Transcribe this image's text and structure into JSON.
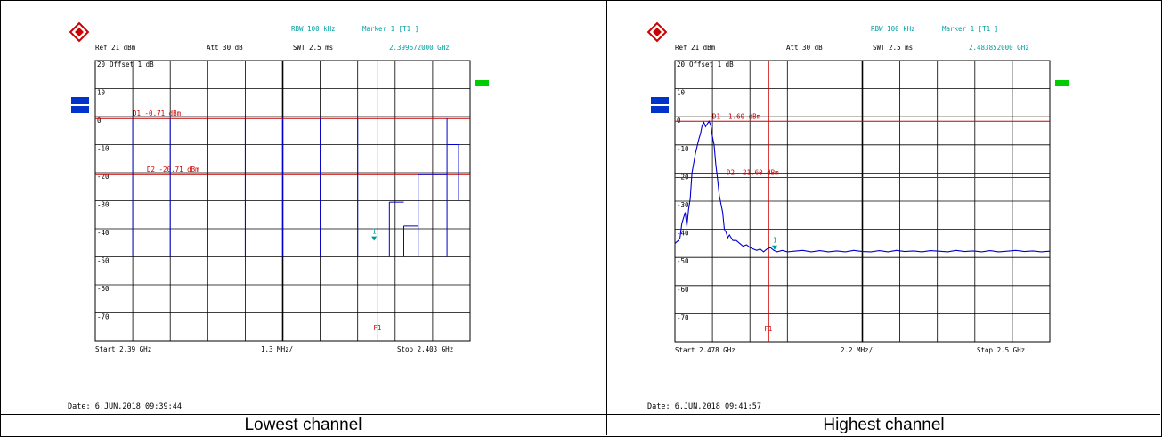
{
  "captions": [
    "Lowest channel",
    "Highest channel"
  ],
  "colors": {
    "trace": "#0000cc",
    "lines": "#cc0000",
    "marker": "#00999a",
    "header_teal": "#00a0a0",
    "badge_green": "#00cc00",
    "badge_blue": "#0033cc"
  },
  "panels": [
    {
      "header": {
        "rbw_marker": "RBW 100 kHz",
        "marker_label": "Marker 1 [T1 ]",
        "ref": "Ref  21 dBm",
        "att": "Att  30 dB",
        "swt": "SWT 2.5 ms",
        "marker_freq": "2.399672000 GHz"
      },
      "offset_label": "Offset  1 dB",
      "start_label": "Start 2.39 GHz",
      "span_label": "1.3 MHz/",
      "stop_label": "Stop 2.403 GHz",
      "date_label": "Date:  6.JUN.2018  09:39:44",
      "marker_number": "1",
      "f1_label": "F1",
      "chart_data": {
        "type": "line",
        "title": "",
        "xlabel": "",
        "ylabel": "",
        "xlim_ghz": [
          2.39,
          2.403
        ],
        "ylim": [
          -80,
          20
        ],
        "yticks": [
          "20",
          "10",
          "0",
          "-10",
          "-20",
          "-30",
          "-40",
          "-50",
          "-60",
          "-70"
        ],
        "grid": true,
        "display_lines": [
          {
            "name": "D1",
            "label": "D1 -0.71 dBm",
            "value": -0.71
          },
          {
            "name": "D2",
            "label": "D2 -20.71 dBm",
            "value": -20.71
          }
        ],
        "f1_frequency_ghz": 2.3998,
        "marker": {
          "x_ghz": 2.39967,
          "y": -44
        },
        "spikes": [
          {
            "x": 2.3913,
            "top": -0.71
          },
          {
            "x": 2.3926,
            "top": -0.71
          },
          {
            "x": 2.3939,
            "top": -0.71
          },
          {
            "x": 2.3952,
            "top": -0.71
          },
          {
            "x": 2.3965,
            "top": -0.71
          },
          {
            "x": 2.3978,
            "top": -0.71
          },
          {
            "x": 2.3991,
            "top": -0.71
          },
          {
            "x": 2.4002,
            "bottom": -30.5,
            "top": -50
          },
          {
            "x": 2.4007,
            "top": -39
          },
          {
            "x": 2.4012,
            "top": -20.71
          },
          {
            "x": 2.4022,
            "top": -0.71
          },
          {
            "x": 2.4026,
            "bottom": -30,
            "top": -10
          }
        ]
      }
    },
    {
      "header": {
        "rbw_marker": "RBW 100 kHz",
        "marker_label": "Marker 1 [T1 ]",
        "ref": "Ref  21 dBm",
        "att": "Att  30 dB",
        "swt": "SWT 2.5 ms",
        "marker_freq": "2.483852000 GHz"
      },
      "offset_label": "Offset  1 dB",
      "start_label": "Start 2.478 GHz",
      "span_label": "2.2 MHz/",
      "stop_label": "Stop 2.5 GHz",
      "date_label": "Date:  6.JUN.2018  09:41:57",
      "marker_number": "1",
      "f1_label": "F1",
      "chart_data": {
        "type": "line",
        "title": "",
        "xlabel": "",
        "ylabel": "",
        "xlim_ghz": [
          2.478,
          2.5
        ],
        "ylim": [
          -80,
          20
        ],
        "yticks": [
          "20",
          "10",
          "0",
          "-10",
          "-20",
          "-30",
          "-40",
          "-50",
          "-60",
          "-70"
        ],
        "grid": true,
        "display_lines": [
          {
            "name": "D1",
            "label": "D1 -1.60 dBm",
            "value": -1.6
          },
          {
            "name": "D2",
            "label": "D2 -21.60 dBm",
            "value": -21.6
          }
        ],
        "f1_frequency_ghz": 2.4835,
        "marker": {
          "x_ghz": 2.48385,
          "y": -47
        },
        "trace": {
          "x": [
            2.478,
            2.4781,
            2.4782,
            2.4783,
            2.4784,
            2.4785,
            2.4786,
            2.4787,
            2.4788,
            2.4789,
            2.479,
            2.4792,
            2.4794,
            2.4795,
            2.4796,
            2.4797,
            2.4798,
            2.4799,
            2.48,
            2.4801,
            2.4802,
            2.4803,
            2.4804,
            2.4805,
            2.4806,
            2.4807,
            2.4808,
            2.4809,
            2.481,
            2.4811,
            2.4812,
            2.4813,
            2.4814,
            2.4816,
            2.4818,
            2.482,
            2.4822,
            2.4824,
            2.4826,
            2.4828,
            2.483,
            2.4832,
            2.4834,
            2.4836,
            2.4838,
            2.484,
            2.4843,
            2.4846,
            2.485,
            2.4855,
            2.486,
            2.4865,
            2.487,
            2.4875,
            2.488,
            2.4885,
            2.489,
            2.4895,
            2.49,
            2.4905,
            2.491,
            2.4915,
            2.492,
            2.4925,
            2.493,
            2.4935,
            2.494,
            2.4945,
            2.495,
            2.4955,
            2.496,
            2.4965,
            2.497,
            2.4975,
            2.498,
            2.4985,
            2.499,
            2.4995,
            2.5
          ],
          "y": [
            -45,
            -44.5,
            -44,
            -43,
            -38,
            -36,
            -34,
            -39,
            -33,
            -29,
            -20,
            -13,
            -8,
            -6,
            -3,
            -2,
            -3.5,
            -2.5,
            -1.6,
            -3,
            -7,
            -10,
            -17,
            -22,
            -28,
            -31,
            -34,
            -40,
            -41,
            -43,
            -42,
            -43,
            -44,
            -44,
            -45,
            -46,
            -45.5,
            -46.5,
            -47,
            -47.5,
            -47,
            -48,
            -47,
            -46.5,
            -47.5,
            -48,
            -47.5,
            -48,
            -47.8,
            -47.5,
            -48,
            -47.6,
            -48,
            -47.7,
            -48,
            -47.5,
            -47.9,
            -48,
            -47.6,
            -48,
            -47.5,
            -47.9,
            -47.7,
            -48,
            -47.6,
            -47.8,
            -48,
            -47.5,
            -47.9,
            -47.7,
            -48,
            -47.6,
            -48,
            -47.8,
            -47.5,
            -47.9,
            -47.7,
            -48,
            -47.8
          ]
        }
      }
    }
  ]
}
